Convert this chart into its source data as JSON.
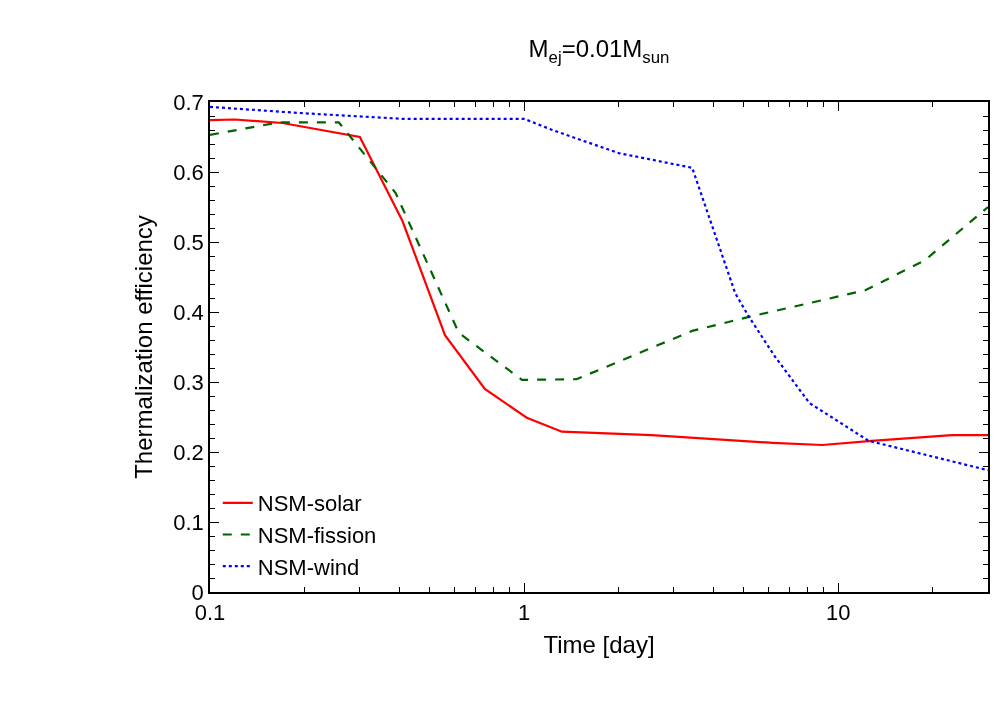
{
  "chart_data": {
    "type": "line",
    "title": "M$_{ej}$=0.01M$_{sun}$",
    "xlabel": "Time [day]",
    "ylabel": "Thermalization efficiency",
    "log": "x",
    "xlim": [
      0.1,
      30
    ],
    "xticks": [
      0.1,
      1,
      10
    ],
    "ylim": [
      0,
      0.7
    ],
    "yticks": [
      0,
      0.1,
      0.2,
      0.3,
      0.4,
      0.5,
      0.6,
      0.7
    ],
    "legend": "bottom left",
    "marker": "none",
    "series": [
      {
        "name": "NSM-solar",
        "color": "#ff0000",
        "line_style": "solid",
        "x": [
          0.1,
          0.12,
          0.17,
          0.3,
          0.41,
          0.56,
          0.75,
          1.02,
          1.32,
          2.55,
          6.2,
          8.9,
          12.8,
          23,
          30
        ],
        "values": [
          0.674,
          0.675,
          0.67,
          0.65,
          0.53,
          0.367,
          0.29,
          0.249,
          0.229,
          0.224,
          0.213,
          0.21,
          0.216,
          0.224,
          0.224
        ]
      },
      {
        "name": "NSM-fission",
        "color": "#006400",
        "line_style": "dashed",
        "x": [
          0.1,
          0.166,
          0.257,
          0.39,
          0.62,
          0.985,
          1.47,
          3.43,
          5.2,
          12.2,
          18.9,
          30
        ],
        "values": [
          0.653,
          0.671,
          0.671,
          0.57,
          0.37,
          0.303,
          0.304,
          0.373,
          0.393,
          0.431,
          0.474,
          0.55
        ]
      },
      {
        "name": "NSM-wind",
        "color": "#0000ff",
        "line_style": "dotted",
        "x": [
          0.1,
          0.197,
          0.41,
          1.0,
          1.23,
          2.0,
          3.43,
          4.7,
          5.2,
          6.3,
          8.1,
          12.5,
          30
        ],
        "values": [
          0.693,
          0.684,
          0.676,
          0.676,
          0.66,
          0.627,
          0.606,
          0.427,
          0.393,
          0.336,
          0.27,
          0.216,
          0.174
        ]
      }
    ]
  }
}
